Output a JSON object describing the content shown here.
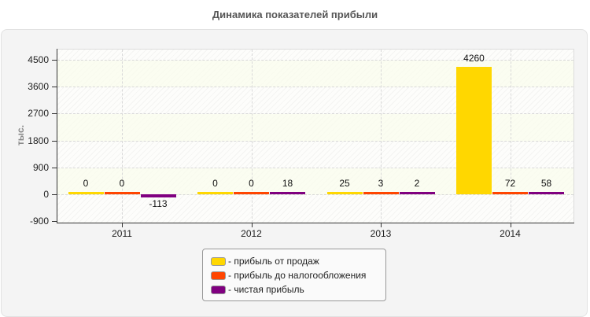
{
  "title": "Динамика показателей прибыли",
  "chart_data": {
    "type": "bar",
    "title": "Динамика показателей прибыли",
    "xlabel": "",
    "ylabel": "тыс.",
    "ylim": [
      -900,
      4500
    ],
    "yticks": [
      4500,
      3600,
      2700,
      1800,
      900,
      0,
      -900
    ],
    "categories": [
      "2011",
      "2012",
      "2013",
      "2014"
    ],
    "series": [
      {
        "name": "- прибыль от продаж",
        "color": "#ffd700",
        "values": [
          0,
          0,
          25,
          4260
        ]
      },
      {
        "name": "- прибыль до налогообложения",
        "color": "#ff4500",
        "values": [
          0,
          0,
          3,
          72
        ]
      },
      {
        "name": "- чистая прибыль",
        "color": "#800080",
        "values": [
          -113,
          18,
          2,
          58
        ]
      }
    ],
    "grid": true,
    "legend_position": "bottom-center"
  },
  "labels": {
    "yticks": [
      "4500",
      "3600",
      "2700",
      "1800",
      "900",
      "0",
      "-900"
    ],
    "ytitle": "тыс.",
    "categories": [
      "2011",
      "2012",
      "2013",
      "2014"
    ],
    "values": [
      [
        "0",
        "0",
        "25",
        "4260"
      ],
      [
        "0",
        "0",
        "3",
        "72"
      ],
      [
        "-113",
        "18",
        "2",
        "58"
      ]
    ],
    "legend": [
      "- прибыль от продаж",
      "- прибыль до налогообложения",
      "- чистая прибыль"
    ]
  }
}
